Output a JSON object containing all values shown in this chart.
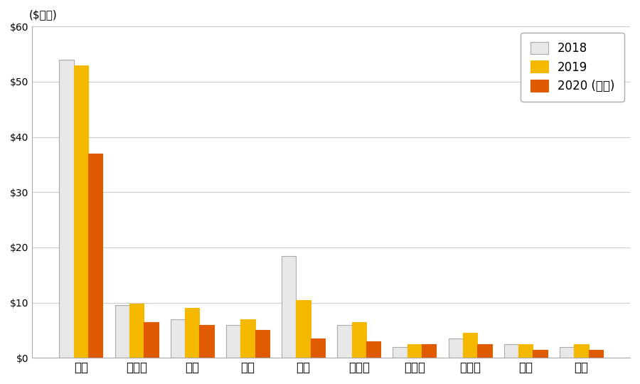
{
  "categories": [
    "歐洲",
    "加拿大",
    "日本",
    "巴西",
    "中國",
    "新加坡",
    "土耳其",
    "墨西哥",
    "印度",
    "台灣"
  ],
  "values_2018": [
    54.0,
    9.5,
    7.0,
    6.0,
    18.5,
    6.0,
    2.0,
    3.5,
    2.5,
    2.0
  ],
  "values_2019": [
    53.0,
    9.8,
    9.0,
    7.0,
    10.5,
    6.5,
    2.5,
    4.5,
    2.5,
    2.5
  ],
  "values_2020": [
    37.0,
    6.5,
    6.0,
    5.0,
    3.5,
    3.0,
    2.5,
    2.5,
    1.5,
    1.5
  ],
  "color_2018": "#e8e8e8",
  "color_2018_edge": "#aaaaaa",
  "color_2019": "#f5b800",
  "color_2020": "#e05a00",
  "ylabel": "($十億)",
  "ylim": [
    0,
    60
  ],
  "yticks": [
    0,
    10,
    20,
    30,
    40,
    50,
    60
  ],
  "legend_labels": [
    "2018",
    "2019",
    "2020 (預測)"
  ],
  "bar_width": 0.26,
  "bg_color": "#ffffff",
  "grid_color": "#cccccc"
}
